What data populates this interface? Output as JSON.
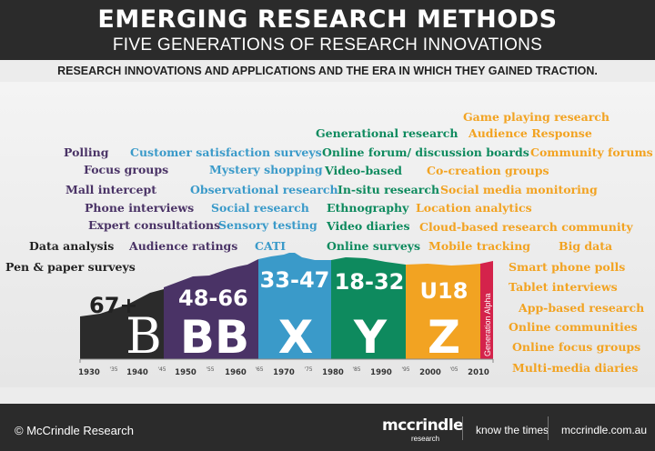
{
  "header": {
    "title": "EMERGING RESEARCH METHODS",
    "subtitle": "FIVE GENERATIONS OF RESEARCH INNOVATIONS"
  },
  "tagline": "RESEARCH INNOVATIONS AND APPLICATIONS AND THE ERA IN WHICH THEY GAINED TRACTION.",
  "colors": {
    "dark": "#222222",
    "purple": "#4a3366",
    "blue": "#3a9ac9",
    "green": "#0e8a5e",
    "orange": "#f2a322",
    "pink": "#d4234b"
  },
  "methods": {
    "dark": [
      "Data analysis",
      "Pen & paper surveys"
    ],
    "purple": [
      "Polling",
      "Focus groups",
      "Mall intercept",
      "Phone interviews",
      "Expert consultations",
      "Audience ratings"
    ],
    "blue": [
      "Customer satisfaction surveys",
      "Mystery shopping",
      "Observational research",
      "Social research",
      "Sensory testing",
      "CATI"
    ],
    "green": [
      "Generational research",
      "Online forum/ discussion boards",
      "Video-based",
      "In-situ research",
      "Ethnography",
      "Video diaries",
      "Online surveys"
    ],
    "orange": [
      "Game playing research",
      "Audience Response",
      "Community forums",
      "Co-creation groups",
      "Social media monitoring",
      "Location analytics",
      "Cloud-based research community",
      "Mobile tracking",
      "Big data",
      "Smart phone polls",
      "Tablet interviews",
      "App-based research",
      "Online communities",
      "Online focus groups",
      "Multi-media diaries"
    ]
  },
  "generations": [
    {
      "age": "67+",
      "letter": "B"
    },
    {
      "age": "48-66",
      "letter": "BB"
    },
    {
      "age": "33-47",
      "letter": "X"
    },
    {
      "age": "18-32",
      "letter": "Y"
    },
    {
      "age": "U18",
      "letter": "Z"
    },
    {
      "age": "Generation Alpha",
      "letter": ""
    }
  ],
  "timeline": {
    "major": [
      "1930",
      "1940",
      "1950",
      "1960",
      "1970",
      "1980",
      "1990",
      "2000",
      "2010"
    ],
    "minor": [
      "'35",
      "'45",
      "'55",
      "'65",
      "'75",
      "'85",
      "'95",
      "'05"
    ]
  },
  "footer": {
    "copyright": "© McCrindle Research",
    "logo": "mccrindle",
    "logo_sub": "research",
    "tagline": "know the times",
    "url": "mccrindle.com.au"
  }
}
